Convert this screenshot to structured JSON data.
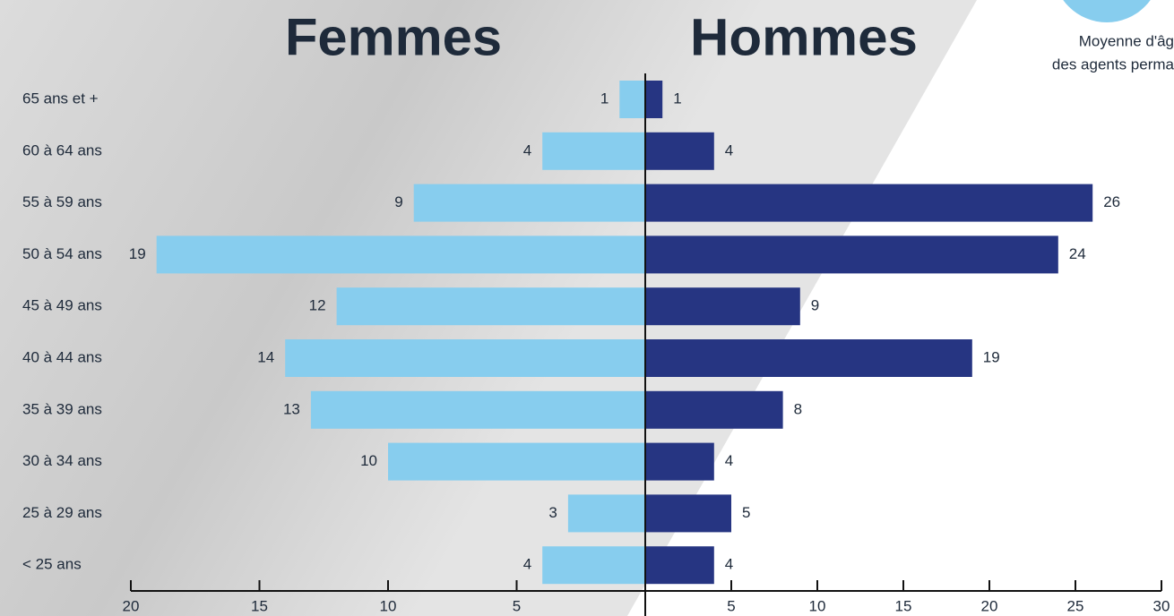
{
  "chart_data": {
    "type": "pyramid",
    "categories": [
      "65 ans et +",
      "60 à 64 ans",
      "55 à 59 ans",
      "50 à 54 ans",
      "45 à 49 ans",
      "40 à 44 ans",
      "35 à 39 ans",
      "30 à 34 ans",
      "25 à 29 ans",
      "< 25 ans"
    ],
    "series": [
      {
        "name": "Femmes",
        "color": "#87cdee",
        "label_color": "#1f4656",
        "values": [
          1,
          4,
          9,
          19,
          12,
          14,
          13,
          10,
          3,
          4
        ]
      },
      {
        "name": "Hommes",
        "color": "#263582",
        "label_color": "#263582",
        "axis": "x2",
        "values": [
          1,
          4,
          26,
          24,
          9,
          19,
          8,
          4,
          5,
          4
        ]
      }
    ],
    "xlim": [
      0,
      20
    ],
    "xticks": [
      20,
      15,
      10,
      5
    ],
    "x2lim": [
      0,
      30
    ],
    "x2ticks": [
      5,
      10,
      15,
      20,
      25,
      30
    ],
    "annotations": [
      "Moyenne d'âg",
      "des agents perma"
    ]
  }
}
